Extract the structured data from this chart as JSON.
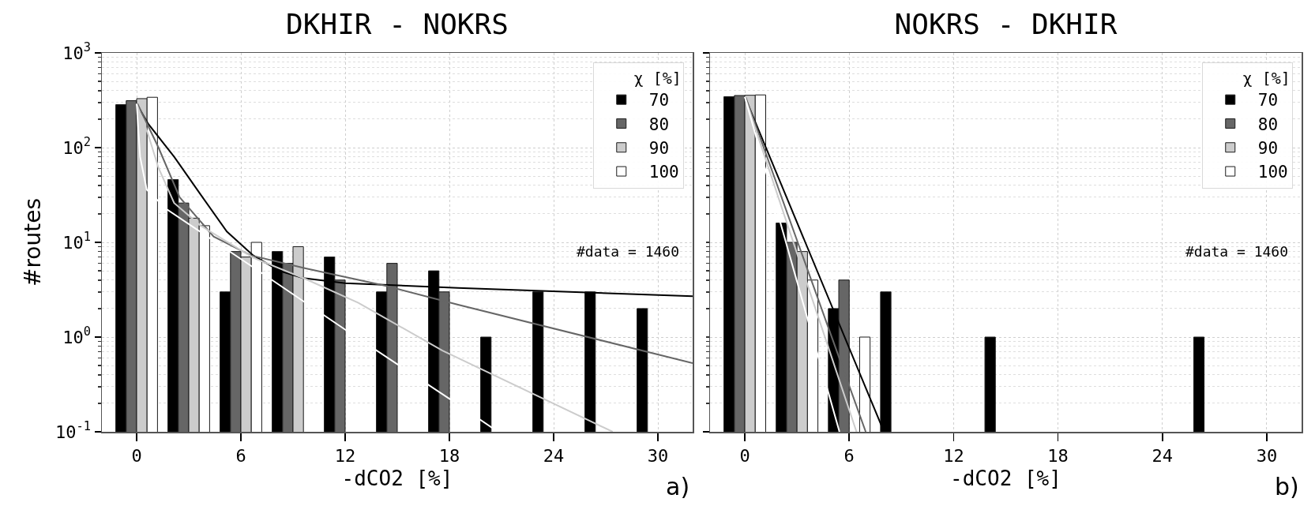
{
  "chart_data": [
    {
      "type": "bar",
      "title": "DKHIR - NOKRS",
      "xlabel": "-dCO2 [%]",
      "ylabel": "#routes",
      "legend_title": "χ [%]",
      "legend": "top right",
      "grid": true,
      "log": "y",
      "x": [
        0,
        3,
        6,
        9,
        12,
        15,
        18,
        21,
        24,
        27,
        30
      ],
      "xlim": [
        -2,
        32
      ],
      "xticks": [
        0,
        6,
        12,
        18,
        24,
        30
      ],
      "ylim": [
        0.1,
        1000
      ],
      "yticks": [
        {
          "value": 0.1,
          "label": "10$^{-1}$"
        },
        {
          "value": 1,
          "label": "10$^{0}$"
        },
        {
          "value": 10,
          "label": "10$^{1}$"
        },
        {
          "value": 100,
          "label": "10$^{2}$"
        },
        {
          "value": 1000,
          "label": "10$^{3}$"
        }
      ],
      "annotations": [
        "#data = 1460",
        "a)"
      ],
      "series": [
        {
          "name": "70",
          "color": "#000000",
          "values": [
            284,
            46,
            3,
            8,
            7,
            3,
            5,
            1,
            3,
            3,
            2
          ]
        },
        {
          "name": "80",
          "color": "#666666",
          "values": [
            313,
            26,
            8,
            6,
            4,
            6,
            3,
            null,
            null,
            null,
            null
          ]
        },
        {
          "name": "90",
          "color": "#cccccc",
          "values": [
            329,
            18,
            7,
            9,
            null,
            null,
            null,
            null,
            null,
            null,
            null
          ]
        },
        {
          "name": "100",
          "color": "#ffffff",
          "values": [
            340,
            15,
            10,
            null,
            null,
            null,
            null,
            null,
            null,
            null,
            null
          ]
        },
        {
          "type": "line",
          "color": "#000000",
          "x": [
            0,
            0.65,
            2.16,
            3.68,
            5.19,
            6.7,
            8.22,
            9.58,
            12,
            18.5,
            32
          ],
          "values": [
            290,
            180,
            80,
            32,
            13,
            7.3,
            5,
            4.2,
            3.7,
            3.3,
            2.7
          ]
        },
        {
          "type": "line",
          "color": "#666666",
          "x": [
            0.05,
            1.26,
            2.47,
            4.43,
            6.55,
            9.73,
            14.27,
            18.5,
            32
          ],
          "values": [
            290,
            100,
            30,
            11.5,
            7.3,
            5.3,
            3.5,
            2.2,
            0.53
          ]
        },
        {
          "type": "line",
          "color": "#cccccc",
          "x": [
            0,
            0.65,
            1.26,
            2.16,
            3.68,
            6.7,
            9.73,
            12.76,
            17.6,
            27.4
          ],
          "values": [
            290,
            140,
            61,
            26,
            15,
            6.9,
            4.1,
            2.3,
            0.72,
            0.1
          ]
        },
        {
          "type": "line",
          "color": "#ffffff",
          "x": [
            0,
            0.2,
            0.58,
            1.71,
            7.16,
            12,
            18.05,
            20.8
          ],
          "values": [
            290,
            80,
            36,
            22.5,
            4.8,
            1.2,
            0.22,
            0.1
          ]
        }
      ]
    },
    {
      "type": "bar",
      "title": "NOKRS - DKHIR",
      "xlabel": "-dCO2 [%]",
      "legend_title": "χ [%]",
      "legend": "top right",
      "grid": true,
      "log": "y",
      "tick_labels": "x",
      "x": [
        0,
        3,
        6,
        9,
        12,
        15,
        18,
        21,
        24,
        27
      ],
      "xlim": [
        -2,
        32
      ],
      "xticks": [
        0,
        6,
        12,
        18,
        24,
        30
      ],
      "ylim": [
        0.1,
        1000
      ],
      "yticks": [
        {
          "value": 0.1,
          "label": null
        },
        {
          "value": 1,
          "label": null
        },
        {
          "value": 10,
          "label": null
        },
        {
          "value": 100,
          "label": null
        },
        {
          "value": 1000,
          "label": null
        }
      ],
      "annotations": [
        "#data = 1460",
        "b)"
      ],
      "series": [
        {
          "name": "70",
          "color": "#000000",
          "values": [
            345,
            16,
            2,
            3,
            null,
            1,
            null,
            null,
            null,
            1
          ]
        },
        {
          "name": "80",
          "color": "#666666",
          "values": [
            355,
            10,
            4,
            null,
            null,
            null,
            null,
            null,
            null,
            null
          ]
        },
        {
          "name": "90",
          "color": "#cccccc",
          "values": [
            357,
            8,
            null,
            null,
            null,
            null,
            null,
            null,
            null,
            null
          ]
        },
        {
          "name": "100",
          "color": "#ffffff",
          "values": [
            360,
            4,
            1,
            null,
            null,
            null,
            null,
            null,
            null,
            null
          ]
        },
        {
          "type": "line",
          "color": "#000000",
          "x": [
            0,
            8
          ],
          "values": [
            344,
            0.1
          ]
        },
        {
          "type": "line",
          "color": "#666666",
          "x": [
            0.05,
            6.95
          ],
          "values": [
            340,
            0.1
          ]
        },
        {
          "type": "line",
          "color": "#cccccc",
          "x": [
            0,
            6.42
          ],
          "values": [
            344,
            0.1
          ]
        },
        {
          "type": "line",
          "color": "#ffffff",
          "x": [
            0,
            5.44
          ],
          "values": [
            344,
            0.1
          ]
        }
      ]
    }
  ]
}
